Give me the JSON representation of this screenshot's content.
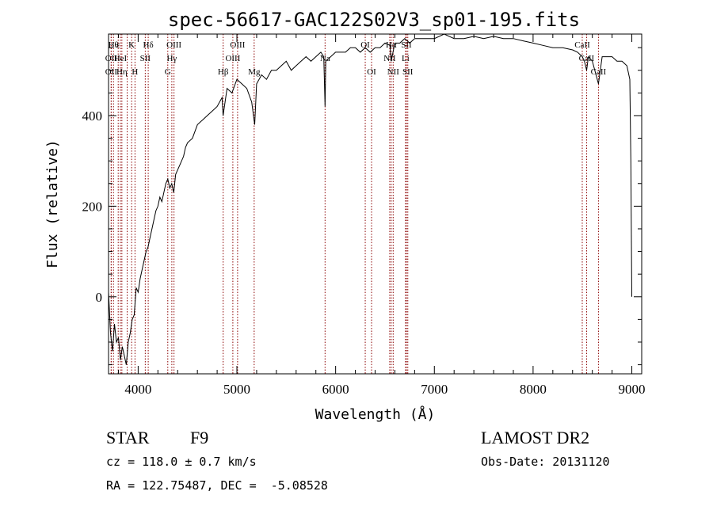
{
  "chart_data": {
    "type": "line",
    "title": "spec-56617-GAC122S02V3_sp01-195.fits",
    "xlabel": "Wavelength (Å)",
    "ylabel": "Flux (relative)",
    "xlim": [
      3700,
      9100
    ],
    "ylim": [
      -170,
      580
    ],
    "xticks": [
      4000,
      5000,
      6000,
      7000,
      8000,
      9000
    ],
    "yticks": [
      0,
      200,
      400
    ],
    "grid": false,
    "series": [
      {
        "x": [
          3700,
          3720,
          3740,
          3760,
          3780,
          3800,
          3820,
          3840,
          3860,
          3880,
          3900,
          3920,
          3940,
          3960,
          3980,
          4000,
          4020,
          4040,
          4060,
          4080,
          4100,
          4120,
          4140,
          4160,
          4180,
          4200,
          4220,
          4240,
          4260,
          4280,
          4300,
          4320,
          4340,
          4360,
          4380,
          4400,
          4420,
          4440,
          4460,
          4480,
          4500,
          4550,
          4600,
          4650,
          4700,
          4750,
          4800,
          4850,
          4860,
          4880,
          4900,
          4950,
          5000,
          5050,
          5100,
          5150,
          5180,
          5200,
          5250,
          5300,
          5350,
          5400,
          5450,
          5500,
          5550,
          5600,
          5650,
          5700,
          5750,
          5800,
          5850,
          5880,
          5893,
          5900,
          5950,
          6000,
          6050,
          6100,
          6150,
          6200,
          6250,
          6300,
          6350,
          6400,
          6450,
          6500,
          6550,
          6563,
          6600,
          6650,
          6700,
          6750,
          6800,
          6900,
          7000,
          7100,
          7200,
          7300,
          7400,
          7500,
          7600,
          7700,
          7800,
          7900,
          8000,
          8100,
          8200,
          8300,
          8400,
          8450,
          8498,
          8520,
          8542,
          8560,
          8600,
          8662,
          8700,
          8750,
          8800,
          8850,
          8900,
          8950,
          8980,
          8990,
          9000
        ],
        "y": [
          10,
          -80,
          -120,
          -60,
          -100,
          -90,
          -140,
          -110,
          -130,
          -150,
          -100,
          -80,
          -50,
          -40,
          20,
          10,
          40,
          60,
          80,
          100,
          110,
          130,
          150,
          170,
          190,
          200,
          220,
          210,
          230,
          250,
          260,
          240,
          250,
          230,
          270,
          280,
          290,
          300,
          310,
          330,
          340,
          350,
          380,
          390,
          400,
          410,
          420,
          440,
          400,
          430,
          460,
          450,
          480,
          470,
          460,
          430,
          380,
          470,
          490,
          480,
          500,
          500,
          510,
          520,
          500,
          510,
          520,
          530,
          520,
          530,
          540,
          530,
          420,
          520,
          530,
          540,
          540,
          540,
          550,
          550,
          540,
          550,
          540,
          550,
          550,
          560,
          555,
          520,
          560,
          560,
          570,
          560,
          570,
          570,
          570,
          580,
          570,
          570,
          575,
          570,
          575,
          570,
          570,
          565,
          560,
          555,
          550,
          550,
          545,
          540,
          530,
          520,
          500,
          530,
          520,
          470,
          530,
          530,
          530,
          520,
          520,
          510,
          480,
          300,
          0
        ]
      }
    ],
    "lines": [
      {
        "wave": 3750,
        "label": "Hθ",
        "row": 0
      },
      {
        "wave": 3727,
        "label": "OII",
        "row": 1
      },
      {
        "wave": 3727,
        "label": "OII",
        "row": 2
      },
      {
        "wave": 3798,
        "label": "ε",
        "row": 0
      },
      {
        "wave": 3820,
        "label": "HeI",
        "row": 1
      },
      {
        "wave": 3835,
        "label": "Hη",
        "row": 2
      },
      {
        "wave": 3889,
        "label": "",
        "row": 2
      },
      {
        "wave": 3934,
        "label": "K",
        "row": 0
      },
      {
        "wave": 3968,
        "label": "H",
        "row": 2
      },
      {
        "wave": 4072,
        "label": "SII",
        "row": 1
      },
      {
        "wave": 4102,
        "label": "Hδ",
        "row": 0
      },
      {
        "wave": 4300,
        "label": "G",
        "row": 2
      },
      {
        "wave": 4341,
        "label": "Hγ",
        "row": 1
      },
      {
        "wave": 4363,
        "label": "OIII",
        "row": 0
      },
      {
        "wave": 4861,
        "label": "Hβ",
        "row": 2
      },
      {
        "wave": 4959,
        "label": "OIII",
        "row": 1
      },
      {
        "wave": 5007,
        "label": "OIII",
        "row": 0
      },
      {
        "wave": 5175,
        "label": "Mg",
        "row": 2
      },
      {
        "wave": 5893,
        "label": "Na",
        "row": 1
      },
      {
        "wave": 6300,
        "label": "OI",
        "row": 0
      },
      {
        "wave": 6364,
        "label": "OI",
        "row": 2
      },
      {
        "wave": 6548,
        "label": "NII",
        "row": 1
      },
      {
        "wave": 6563,
        "label": "Hα",
        "row": 0
      },
      {
        "wave": 6583,
        "label": "NII",
        "row": 2
      },
      {
        "wave": 6708,
        "label": "Li",
        "row": 1
      },
      {
        "wave": 6717,
        "label": "SII",
        "row": 0
      },
      {
        "wave": 6731,
        "label": "SII",
        "row": 2
      },
      {
        "wave": 8498,
        "label": "CaII",
        "row": 0
      },
      {
        "wave": 8542,
        "label": "CaII",
        "row": 1
      },
      {
        "wave": 8662,
        "label": "CaII",
        "row": 2
      }
    ]
  },
  "info": {
    "class": "STAR",
    "subclass": "F9",
    "survey": "LAMOST DR2",
    "cz": "cz = 118.0 ± 0.7 km/s",
    "obs_date": "Obs-Date: 20131120",
    "radec": "RA = 122.75487, DEC =  -5.08528"
  }
}
